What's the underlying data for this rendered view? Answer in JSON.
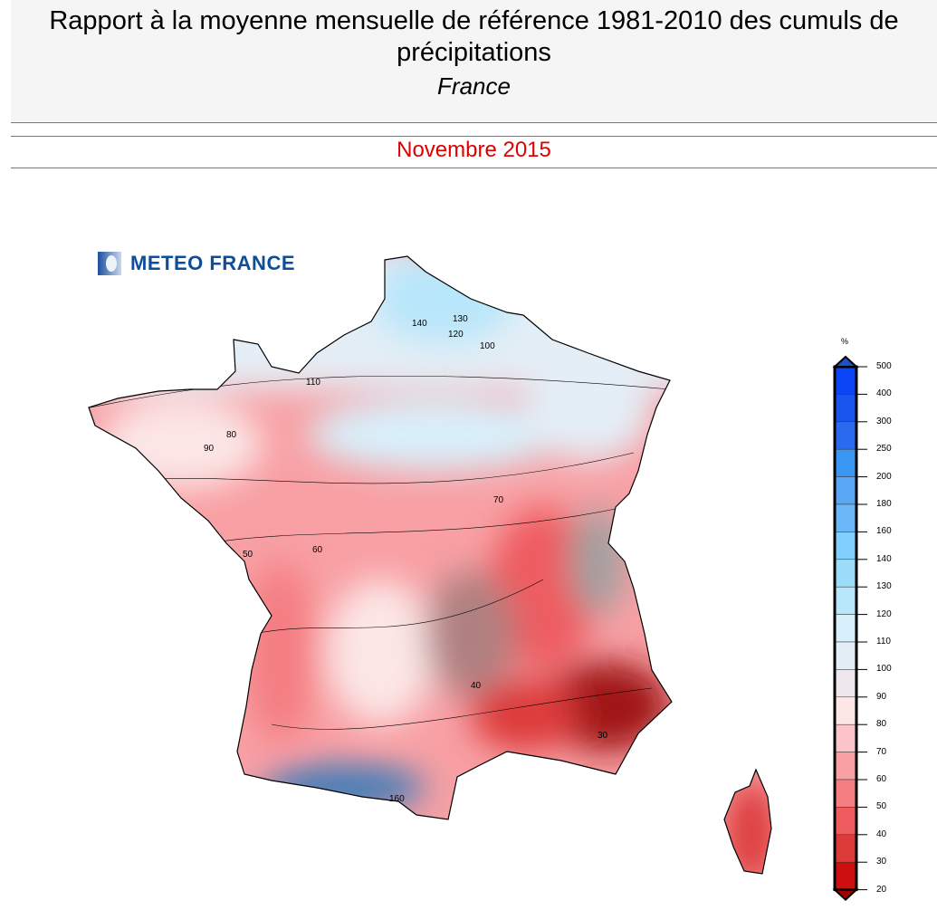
{
  "header": {
    "title": "Rapport à la moyenne mensuelle de référence 1981-2010 des cumuls de précipitations",
    "region": "France",
    "period": "Novembre 2015",
    "period_color": "#e00000"
  },
  "logo": {
    "text": "METEO FRANCE"
  },
  "legend": {
    "unit": "%",
    "ticks": [
      "500",
      "400",
      "300",
      "250",
      "200",
      "180",
      "160",
      "140",
      "130",
      "120",
      "110",
      "100",
      "90",
      "80",
      "70",
      "60",
      "50",
      "40",
      "30",
      "20"
    ],
    "colors": [
      "#0a46f5",
      "#1a55f0",
      "#2a6af0",
      "#3a96f5",
      "#5aa8f5",
      "#6ab8f8",
      "#80cfff",
      "#9cdcf8",
      "#b8e6fa",
      "#d8f0fb",
      "#e4eef6",
      "#eee8ee",
      "#fce6e6",
      "#fcc4c8",
      "#f8a0a4",
      "#f47e82",
      "#ee5c60",
      "#dd3a3a",
      "#cc1010"
    ],
    "top_arrow_color": "#1a50c8",
    "bottom_arrow_color": "#a00000"
  },
  "map": {
    "contour_labels": [
      "140",
      "130",
      "120",
      "110",
      "100",
      "90",
      "80",
      "70",
      "60",
      "50",
      "40",
      "30",
      "160"
    ]
  }
}
